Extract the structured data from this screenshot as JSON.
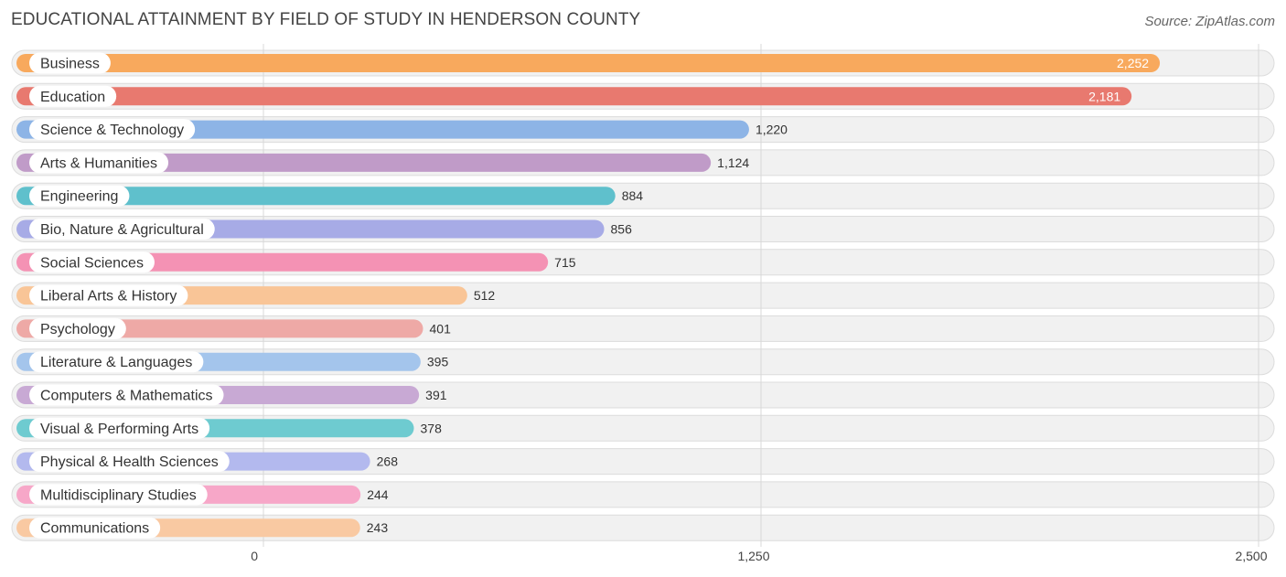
{
  "title": "EDUCATIONAL ATTAINMENT BY FIELD OF STUDY IN HENDERSON COUNTY",
  "source": "Source: ZipAtlas.com",
  "chart_data": {
    "type": "bar",
    "orientation": "horizontal",
    "title": "EDUCATIONAL ATTAINMENT BY FIELD OF STUDY IN HENDERSON COUNTY",
    "xlabel": "",
    "ylabel": "",
    "xlim": [
      0,
      2500
    ],
    "ticks": [
      0,
      1250,
      2500
    ],
    "tick_labels": [
      "0",
      "1,250",
      "2,500"
    ],
    "categories": [
      "Business",
      "Education",
      "Science & Technology",
      "Arts & Humanities",
      "Engineering",
      "Bio, Nature & Agricultural",
      "Social Sciences",
      "Liberal Arts & History",
      "Psychology",
      "Literature & Languages",
      "Computers & Mathematics",
      "Visual & Performing Arts",
      "Physical & Health Sciences",
      "Multidisciplinary Studies",
      "Communications"
    ],
    "values": [
      2252,
      2181,
      1220,
      1124,
      884,
      856,
      715,
      512,
      401,
      395,
      391,
      378,
      268,
      244,
      243
    ],
    "value_labels": [
      "2,252",
      "2,181",
      "1,220",
      "1,124",
      "884",
      "856",
      "715",
      "512",
      "401",
      "395",
      "391",
      "378",
      "268",
      "244",
      "243"
    ],
    "colors": [
      "#f8a95d",
      "#e8796f",
      "#8db4e6",
      "#c09bc8",
      "#5fc0cc",
      "#a7abe6",
      "#f492b4",
      "#f9c597",
      "#eea9a6",
      "#a4c5ec",
      "#c8a9d4",
      "#6ecbd0",
      "#b3b9ee",
      "#f7a7c8",
      "#f9c9a2"
    ]
  }
}
